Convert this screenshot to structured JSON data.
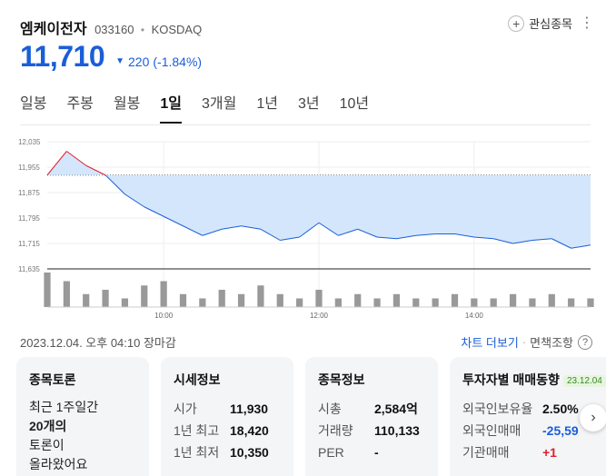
{
  "stock": {
    "name": "엠케이전자",
    "code": "033160",
    "market": "KOSDAQ",
    "price": "11,710",
    "change": "220",
    "change_pct": "(-1.84%)",
    "favorite_label": "관심종목"
  },
  "tabs": [
    "일봉",
    "주봉",
    "월봉",
    "1일",
    "3개월",
    "1년",
    "3년",
    "10년"
  ],
  "active_tab": "1일",
  "colors": {
    "down": "#1a5ed8",
    "up": "#e0202b",
    "fill_down": "#d4e6fb",
    "fill_up": "#fbd2d2"
  },
  "chart_data": {
    "type": "area",
    "reference_price": 11930,
    "ylim": [
      11635,
      12035
    ],
    "y_ticks": [
      "12,035",
      "11,955",
      "11,875",
      "11,795",
      "11,715",
      "11,635"
    ],
    "x_ticks": [
      "10:00",
      "12:00",
      "14:00"
    ],
    "x": [
      "09:00",
      "09:10",
      "09:20",
      "09:30",
      "09:40",
      "09:50",
      "10:00",
      "10:15",
      "10:30",
      "10:45",
      "11:00",
      "11:15",
      "11:30",
      "11:45",
      "12:00",
      "12:15",
      "12:30",
      "12:45",
      "13:00",
      "13:15",
      "13:30",
      "13:45",
      "14:00",
      "14:15",
      "14:30",
      "14:45",
      "15:00",
      "15:15",
      "15:30"
    ],
    "values": [
      11930,
      12005,
      11960,
      11930,
      11870,
      11830,
      11800,
      11770,
      11740,
      11760,
      11770,
      11760,
      11725,
      11735,
      11780,
      11740,
      11760,
      11735,
      11730,
      11740,
      11745,
      11745,
      11735,
      11730,
      11715,
      11725,
      11730,
      11700,
      11710
    ],
    "volume": [
      8,
      6,
      3,
      4,
      2,
      5,
      6,
      3,
      2,
      4,
      3,
      5,
      3,
      2,
      4,
      2,
      3,
      2,
      3,
      2,
      2,
      3,
      2,
      2,
      3,
      2,
      3,
      2,
      2
    ]
  },
  "info": {
    "timestamp": "2023.12.04. 오후 04:10 장마감",
    "chart_more": "차트 더보기",
    "exempt": "면책조항",
    "help": "?"
  },
  "cards": {
    "discussion": {
      "title": "종목토론",
      "line1": "최근 1주일간",
      "line2": "20개의",
      "line3": "토론이",
      "line4": "올라왔어요"
    },
    "price_info": {
      "title": "시세정보",
      "rows": [
        {
          "label": "시가",
          "value": "11,930"
        },
        {
          "label": "1년 최고",
          "value": "18,420"
        },
        {
          "label": "1년 최저",
          "value": "10,350"
        }
      ]
    },
    "stock_info": {
      "title": "종목정보",
      "rows": [
        {
          "label": "시총",
          "value": "2,584억"
        },
        {
          "label": "거래량",
          "value": "110,133"
        },
        {
          "label": "PER",
          "value": "-"
        }
      ]
    },
    "investor": {
      "title": "투자자별 매매동향",
      "date": "23.12.04",
      "rows": [
        {
          "label": "외국인보유율",
          "value": "2.50%"
        },
        {
          "label": "외국인매매",
          "value": "-25,59"
        },
        {
          "label": "기관매매",
          "value": "+1"
        }
      ]
    }
  }
}
